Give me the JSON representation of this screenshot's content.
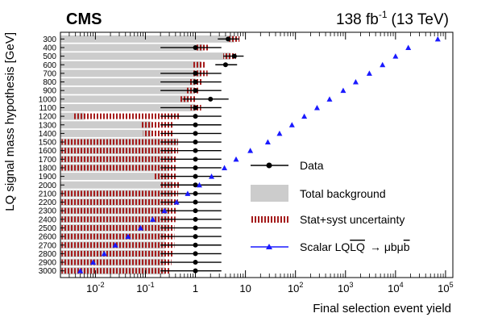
{
  "header": {
    "experiment": "CMS",
    "lumi_value": "138 fb",
    "lumi_exp": "-1",
    "lumi_energy": "(13 TeV)"
  },
  "chart_data": {
    "type": "horizontal-bar",
    "title": "CMS",
    "xlabel": "Final selection event yield",
    "ylabel": "LQ signal mass hypothesis [GeV]",
    "xscale": "log",
    "xlim": [
      0.002,
      140000
    ],
    "x_tick_labels": [
      {
        "value": 0.01,
        "base": "10",
        "exp": "-2"
      },
      {
        "value": 0.1,
        "base": "10",
        "exp": "-1"
      },
      {
        "value": 1,
        "base": "1",
        "exp": ""
      },
      {
        "value": 10,
        "base": "10",
        "exp": ""
      },
      {
        "value": 100,
        "base": "10",
        "exp": "2"
      },
      {
        "value": 1000,
        "base": "10",
        "exp": "3"
      },
      {
        "value": 10000,
        "base": "10",
        "exp": "4"
      },
      {
        "value": 100000,
        "base": "10",
        "exp": "5"
      }
    ],
    "masses": [
      "300",
      "400",
      "500",
      "600",
      "700",
      "800",
      "900",
      "1000",
      "1100",
      "1200",
      "1300",
      "1400",
      "1500",
      "1600",
      "1700",
      "1800",
      "1900",
      "2000",
      "2100",
      "2200",
      "2300",
      "2400",
      "2500",
      "2600",
      "2700",
      "2800",
      "2900",
      "3000"
    ],
    "series": [
      {
        "name": "Data",
        "kind": "points",
        "color": "#000000",
        "values": [
          4.5,
          1,
          6,
          4,
          1,
          1,
          1,
          2,
          1,
          1,
          1,
          1,
          1,
          1,
          1,
          1,
          1,
          1,
          1,
          1,
          1,
          1,
          1,
          1,
          1,
          1,
          1,
          1
        ],
        "err_low": [
          2.8,
          0.2,
          3.6,
          2.5,
          0.2,
          0.2,
          0.2,
          0.55,
          0.2,
          0.2,
          0.2,
          0.2,
          0.2,
          0.2,
          0.2,
          0.2,
          0.2,
          0.2,
          0.2,
          0.2,
          0.2,
          0.2,
          0.2,
          0.2,
          0.2,
          0.2,
          0.2,
          0.2
        ],
        "err_high": [
          7.5,
          3.3,
          9.2,
          6.8,
          3.3,
          3.3,
          3.3,
          4.6,
          3.3,
          3.3,
          3.3,
          3.3,
          3.3,
          3.3,
          3.3,
          3.3,
          3.3,
          3.3,
          3.3,
          3.3,
          3.3,
          3.3,
          3.3,
          3.3,
          3.3,
          3.3,
          3.3,
          3.3
        ]
      },
      {
        "name": "Total background",
        "kind": "bars",
        "color": "#cccccc",
        "values": [
          6.0,
          1.4,
          5.0,
          1.3,
          1.3,
          1.0,
          0.9,
          0.75,
          1.0,
          0.006,
          0.13,
          0.13,
          0.45,
          0.35,
          0.35,
          0.3,
          0.3,
          0.35,
          0.35,
          0.35,
          0.3,
          0.3,
          0.3,
          0.25,
          0.25,
          0.25,
          0.25,
          0.25
        ]
      },
      {
        "name": "Stat+syst uncertainty",
        "kind": "bands",
        "color": "#a51c1c",
        "low": [
          4.5,
          1.0,
          3.6,
          0.9,
          0.9,
          0.75,
          0.65,
          0.5,
          0.8,
          0.0035,
          0.08,
          0.09,
          0.0021,
          0.0021,
          0.0021,
          0.0021,
          0.15,
          0.2,
          0.0021,
          0.0021,
          0.0021,
          0.0021,
          0.0021,
          0.0021,
          0.0021,
          0.0021,
          0.0021,
          0.0021
        ],
        "high": [
          7.6,
          1.85,
          6.5,
          1.6,
          1.75,
          1.35,
          1.2,
          1.05,
          1.3,
          0.5,
          0.35,
          0.35,
          0.45,
          0.45,
          0.42,
          0.4,
          0.42,
          0.5,
          0.45,
          0.45,
          0.42,
          0.4,
          0.38,
          0.38,
          0.38,
          0.35,
          0.33,
          0.32
        ]
      },
      {
        "name": "Scalar LQLQ → μbμb",
        "kind": "triangles",
        "color": "#1a1aff",
        "values": [
          70000,
          18000,
          10000,
          5500,
          3000,
          1600,
          900,
          480,
          270,
          150,
          85,
          48,
          28,
          12.5,
          6.5,
          3.8,
          2.1,
          1.2,
          0.7,
          0.42,
          0.24,
          0.14,
          0.08,
          0.045,
          0.025,
          0.015,
          0.009,
          0.005
        ]
      }
    ],
    "legend": {
      "position": "center-right",
      "entries": [
        "Data",
        "Total background",
        "Stat+syst uncertainty",
        "Scalar LQ",
        "LQ",
        "→ μbμ",
        "b"
      ]
    }
  }
}
